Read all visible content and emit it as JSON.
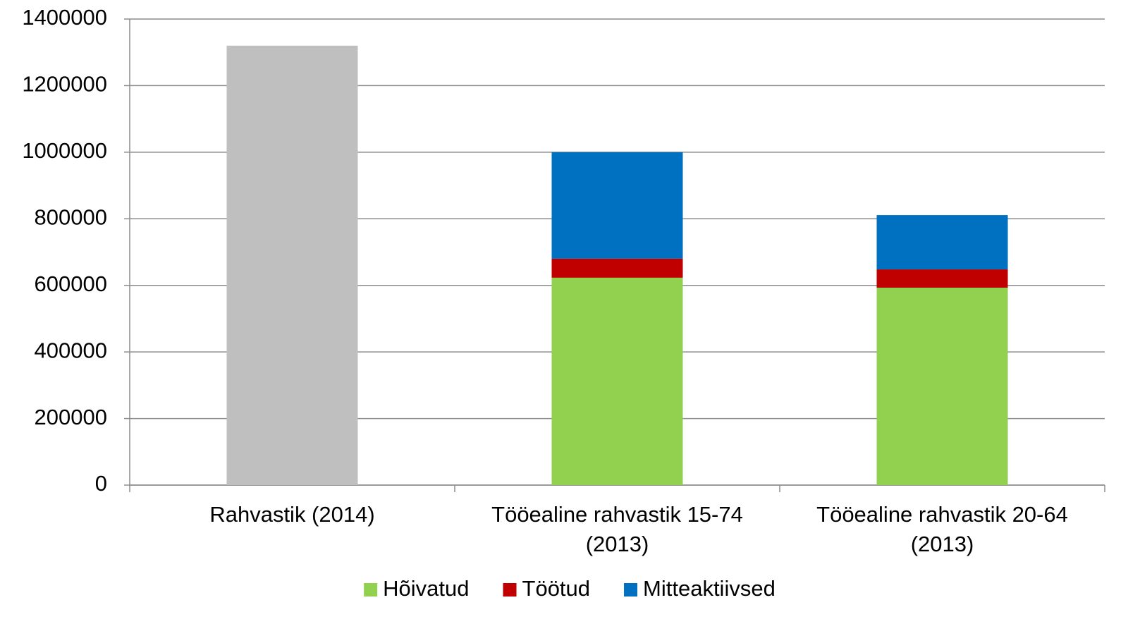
{
  "chart_data": {
    "type": "stacked_bar",
    "categories": [
      "Rahvastik (2014)",
      "Tööealine rahvastik 15-74 (2013)",
      "Tööealine rahvastik 20-64 (2013)"
    ],
    "series": [
      {
        "color": "#bfbfbf",
        "values": [
          1320000,
          null,
          null
        ]
      },
      {
        "name": "Hõivatud",
        "color": "#92d050",
        "values": [
          null,
          623000,
          593000
        ]
      },
      {
        "name": "Töötud",
        "color": "#c00000",
        "values": [
          null,
          57000,
          55000
        ]
      },
      {
        "name": "Mitteaktiivsed",
        "color": "#0070c0",
        "values": [
          null,
          320000,
          163000
        ]
      }
    ],
    "ylim": [
      0,
      1400000
    ],
    "yticks": [
      0,
      200000,
      400000,
      600000,
      800000,
      1000000,
      1200000,
      1400000
    ],
    "grid": true,
    "legend": "bottom"
  }
}
